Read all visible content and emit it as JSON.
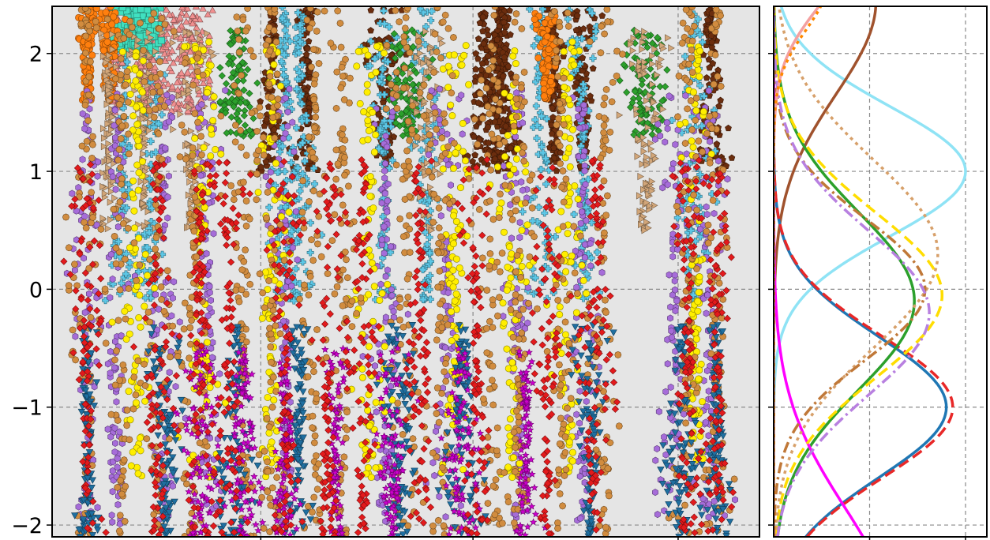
{
  "chart_data": [
    {
      "type": "scatter",
      "title": "",
      "xlabel": "",
      "ylabel": "",
      "ylim": [
        -2.1,
        2.4
      ],
      "yticks": [
        -2,
        -1,
        0,
        1,
        2
      ],
      "ytick_labels": [
        "−2",
        "−1",
        "0",
        "1",
        "2"
      ],
      "xticks": [
        0.295,
        0.595,
        0.885
      ],
      "xtick_labels": [],
      "grid": true,
      "background": "#e5e5e5",
      "series": [
        {
          "color": "#6b2d0e",
          "marker": "pentagon",
          "ymin": 1.0,
          "ymax": 2.4,
          "clusters": [
            0.47,
            0.31,
            0.36,
            0.63,
            0.64,
            0.71,
            0.93,
            0.75,
            0.61
          ]
        },
        {
          "color": "#5cc7e6",
          "marker": "plus",
          "ymin": -0.1,
          "ymax": 2.4,
          "clusters": [
            0.1,
            0.14,
            0.33,
            0.35,
            0.47,
            0.53,
            0.69,
            0.75,
            0.91
          ]
        },
        {
          "color": "#f08f8f",
          "marker": "triangle-up",
          "ymin": 1.5,
          "ymax": 2.4,
          "clusters": [
            0.09,
            0.13,
            0.17,
            0.2
          ]
        },
        {
          "color": "#40e0c0",
          "marker": "square",
          "ymin": 2.0,
          "ymax": 2.4,
          "clusters": [
            0.11,
            0.13
          ]
        },
        {
          "color": "#ff7f0e",
          "marker": "circle",
          "ymin": 1.6,
          "ymax": 2.4,
          "clusters": [
            0.05,
            0.08,
            0.7
          ]
        },
        {
          "color": "#2ca02c",
          "marker": "diamond",
          "ymin": 1.3,
          "ymax": 2.2,
          "clusters": [
            0.26,
            0.5,
            0.84
          ]
        },
        {
          "color": "#d2a679",
          "marker": "triangle-right",
          "ymin": 0.5,
          "ymax": 2.2,
          "clusters": [
            0.08,
            0.13,
            0.2,
            0.53,
            0.84
          ]
        },
        {
          "color": "#a66cd9",
          "marker": "hexagon",
          "ymin": -2.0,
          "ymax": 1.7,
          "clusters": [
            0.05,
            0.09,
            0.16,
            0.22,
            0.33,
            0.47,
            0.56,
            0.66,
            0.75,
            0.88,
            0.93
          ]
        },
        {
          "color": "#ffee00",
          "marker": "circle",
          "ymin": -1.6,
          "ymax": 2.1,
          "clusters": [
            0.12,
            0.21,
            0.31,
            0.45,
            0.57,
            0.65,
            0.73,
            0.91
          ]
        },
        {
          "color": "#d18c3f",
          "marker": "octagon",
          "ymin": -2.1,
          "ymax": 2.4,
          "clusters": [
            0.05,
            0.1,
            0.15,
            0.2,
            0.27,
            0.31,
            0.37,
            0.41,
            0.5,
            0.55,
            0.62,
            0.66,
            0.72,
            0.78,
            0.9,
            0.94
          ]
        },
        {
          "color": "#1f6fa0",
          "marker": "triangle-down",
          "ymin": -2.1,
          "ymax": -0.3,
          "clusters": [
            0.05,
            0.16,
            0.26,
            0.35,
            0.49,
            0.58,
            0.76,
            0.89,
            0.94
          ]
        },
        {
          "color": "#cc00cc",
          "marker": "star",
          "ymin": -2.1,
          "ymax": -0.5,
          "clusters": [
            0.21,
            0.27,
            0.33,
            0.4,
            0.48,
            0.58,
            0.67
          ]
        },
        {
          "color": "#e31a1c",
          "marker": "diamond",
          "ymin": -2.1,
          "ymax": 1.1,
          "clusters": [
            0.05,
            0.15,
            0.21,
            0.25,
            0.33,
            0.39,
            0.44,
            0.52,
            0.6,
            0.7,
            0.77,
            0.9,
            0.94
          ]
        }
      ]
    },
    {
      "type": "line",
      "title": "",
      "xlabel": "",
      "ylabel": "",
      "ylim": [
        -2.1,
        2.4
      ],
      "xlim": [
        0,
        1.0
      ],
      "xticks": [
        0.45,
        0.9
      ],
      "xtick_labels": [],
      "grid": true,
      "background": "#ffffff",
      "series": [
        {
          "color": "#8fe3f5",
          "dash": "solid",
          "center": 1.0,
          "sigma": 0.55,
          "peak": 0.9
        },
        {
          "color": "#a0522d",
          "dash": "solid",
          "center": 2.45,
          "sigma": 0.8,
          "peak": 0.48
        },
        {
          "color": "#1f77b4",
          "dash": "solid",
          "center": -1.0,
          "sigma": 0.6,
          "peak": 0.81
        },
        {
          "color": "#e82828",
          "dash": "dashed",
          "center": -1.0,
          "sigma": 0.6,
          "peak": 0.84
        },
        {
          "color": "#2ca02c",
          "dash": "solid",
          "center": -0.1,
          "sigma": 0.75,
          "peak": 0.66
        },
        {
          "color": "#ff00ff",
          "dash": "solid",
          "center": -2.8,
          "sigma": 0.95,
          "peak": 0.55
        },
        {
          "color": "#ffdd00",
          "dash": "dashed",
          "center": -0.05,
          "sigma": 0.7,
          "peak": 0.79
        },
        {
          "color": "#d7a06a",
          "dash": "dotted",
          "center": 0.3,
          "sigma": 0.8,
          "peak": 0.77
        },
        {
          "color": "#c07838",
          "dash": "dashdot",
          "center": 0.0,
          "sigma": 0.6,
          "peak": 0.71
        },
        {
          "color": "#b880e0",
          "dash": "dashdot",
          "center": -0.2,
          "sigma": 0.7,
          "peak": 0.73
        },
        {
          "color": "#f4a0a0",
          "dash": "solid",
          "center": 2.9,
          "sigma": 0.5,
          "peak": 0.35
        },
        {
          "color": "#ff8800",
          "dash": "dotted",
          "center": 2.6,
          "sigma": 0.4,
          "peak": 0.25
        }
      ]
    }
  ]
}
